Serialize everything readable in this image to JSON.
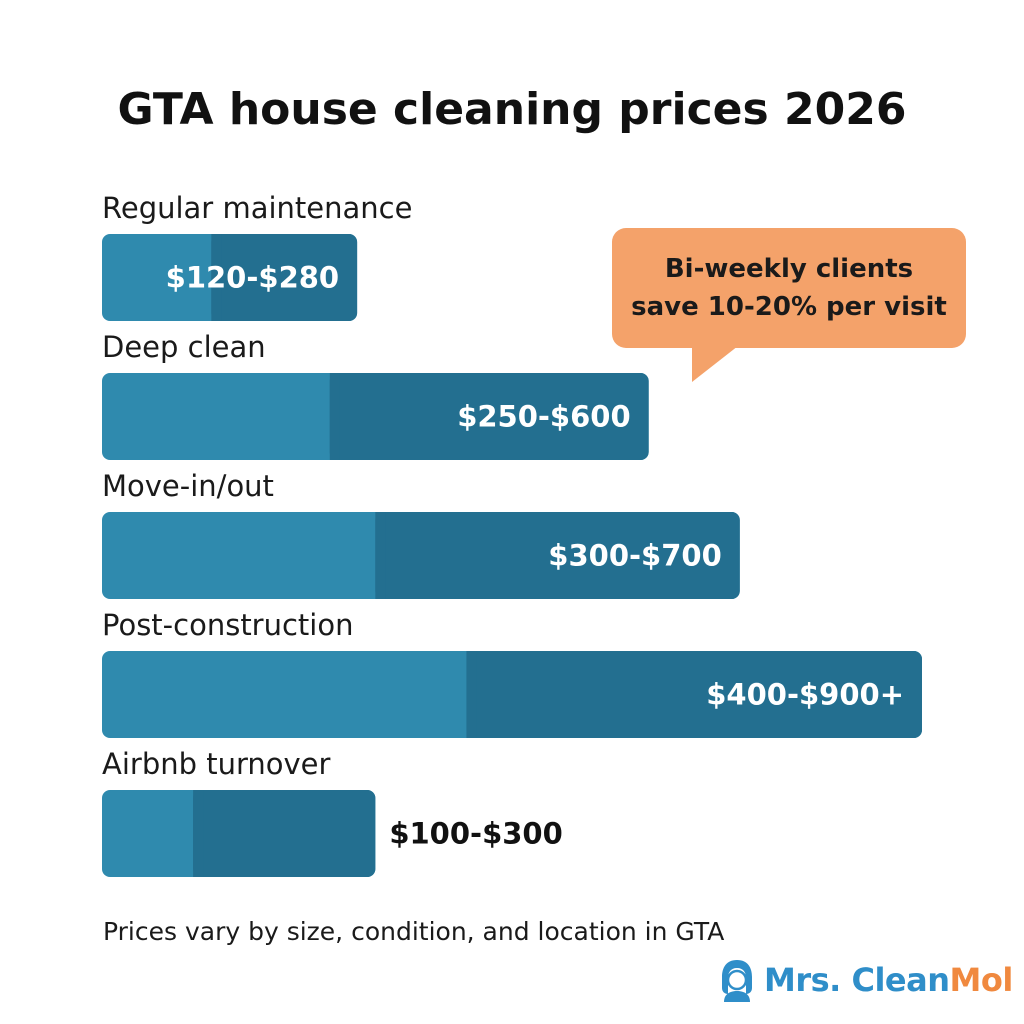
{
  "chart_data": {
    "type": "bar",
    "orientation": "horizontal",
    "title": "GTA house cleaning prices 2026",
    "categories": [
      "Regular maintenance",
      "Deep clean",
      "Move-in/out",
      "Post-construction",
      "Airbnb turnover"
    ],
    "ranges": [
      {
        "min": 120,
        "max": 280,
        "label": "$120-$280"
      },
      {
        "min": 250,
        "max": 600,
        "label": "$250-$600"
      },
      {
        "min": 300,
        "max": 700,
        "label": "$300-$700"
      },
      {
        "min": 400,
        "max": 900,
        "label": "$400-$900+"
      },
      {
        "min": 100,
        "max": 300,
        "label": "$100-$300"
      }
    ],
    "value_label_position": [
      "inside",
      "inside",
      "inside",
      "inside",
      "outside"
    ],
    "xlim": [
      0,
      900
    ],
    "grid": false,
    "legend": "none",
    "colors": {
      "bar_light": "#2f8aae",
      "bar_dark": "#236f90",
      "label_inside": "#ffffff",
      "label_outside": "#111111"
    }
  },
  "callout": {
    "line1": "Bi-weekly clients",
    "line2": "save 10-20% per visit",
    "color": "#f4a26a"
  },
  "footnote": "Prices vary by size, condition, and location in GTA",
  "brand": {
    "name_main": "Mrs. Clean",
    "name_accent": "Mol",
    "icon": "woman-avatar-icon",
    "colors": {
      "main": "#2f8ec9",
      "accent": "#f0893f"
    }
  }
}
